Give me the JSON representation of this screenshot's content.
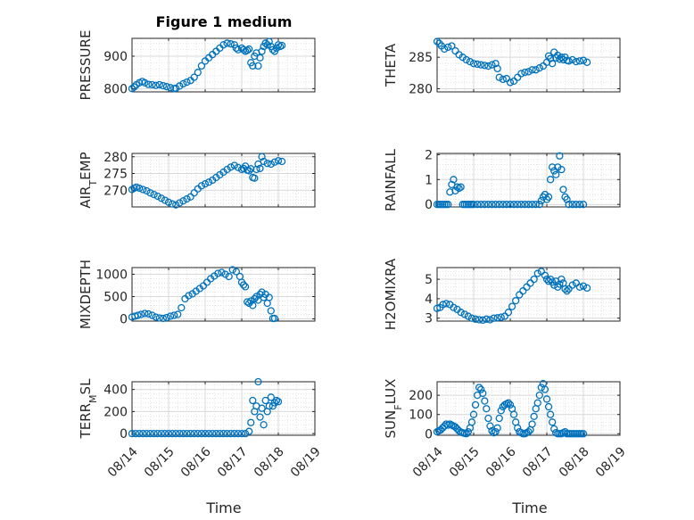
{
  "figure": {
    "title": "Figure 1 medium",
    "xlabel_left": "Time",
    "xlabel_right": "Time"
  },
  "colors": {
    "marker": "#0072BD",
    "axis": "#262626",
    "grid": "#d9d9d9"
  },
  "chart_data": [
    {
      "type": "scatter",
      "id": "pressure",
      "ylabel_main": "PRESSURE",
      "ylabel_sub": "",
      "ylabel_tail": "",
      "ylim": [
        790,
        955
      ],
      "yticks": [
        800,
        900
      ],
      "xlim": [
        "08/14",
        "08/19"
      ],
      "show_xticks": false,
      "grid": true,
      "x_days": [
        0,
        0.06,
        0.12,
        0.2,
        0.28,
        0.35,
        0.45,
        0.55,
        0.65,
        0.75,
        0.85,
        0.95,
        1.05,
        1.15,
        1.2,
        1.3,
        1.4,
        1.5,
        1.6,
        1.7,
        1.8,
        1.9,
        2.0,
        2.1,
        2.2,
        2.3,
        2.4,
        2.5,
        2.6,
        2.7,
        2.8,
        2.85,
        2.9,
        3.0,
        3.05,
        3.1,
        3.15,
        3.2,
        3.25,
        3.3,
        3.35,
        3.4,
        3.45,
        3.5,
        3.55,
        3.6,
        3.65,
        3.7,
        3.75,
        3.8,
        3.85,
        3.9,
        3.95,
        4.0,
        4.05,
        4.1
      ],
      "y": [
        800,
        805,
        812,
        818,
        822,
        818,
        813,
        812,
        810,
        812,
        809,
        806,
        803,
        800,
        801,
        808,
        815,
        820,
        825,
        835,
        850,
        870,
        885,
        895,
        905,
        915,
        925,
        935,
        940,
        938,
        935,
        925,
        920,
        925,
        920,
        915,
        918,
        922,
        880,
        870,
        900,
        910,
        870,
        895,
        915,
        930,
        940,
        935,
        945,
        930,
        920,
        915,
        925,
        935,
        930,
        933
      ],
      "x_labels": [
        "08/14",
        "08/15",
        "08/16",
        "08/17",
        "08/18",
        "08/19"
      ]
    },
    {
      "type": "scatter",
      "id": "theta",
      "ylabel_main": "THETA",
      "ylabel_sub": "",
      "ylabel_tail": "",
      "ylim": [
        279.5,
        288
      ],
      "yticks": [
        280,
        285
      ],
      "xlim": [
        "08/14",
        "08/19"
      ],
      "show_xticks": false,
      "grid": true,
      "x_days": [
        0,
        0.06,
        0.12,
        0.2,
        0.3,
        0.4,
        0.5,
        0.6,
        0.7,
        0.8,
        0.9,
        1.0,
        1.1,
        1.2,
        1.3,
        1.4,
        1.5,
        1.6,
        1.65,
        1.7,
        1.8,
        1.9,
        2.0,
        2.1,
        2.2,
        2.3,
        2.4,
        2.5,
        2.6,
        2.7,
        2.8,
        2.9,
        3.0,
        3.05,
        3.1,
        3.15,
        3.2,
        3.25,
        3.3,
        3.35,
        3.4,
        3.45,
        3.5,
        3.55,
        3.6,
        3.7,
        3.8,
        3.9,
        4.0,
        4.1
      ],
      "y": [
        287.5,
        287.2,
        286.8,
        286.3,
        286.6,
        286.8,
        286.0,
        285.4,
        285.0,
        284.6,
        284.3,
        284.0,
        283.9,
        283.8,
        283.7,
        283.6,
        283.8,
        284.0,
        283.2,
        281.8,
        281.5,
        281.6,
        281.0,
        281.2,
        281.8,
        282.4,
        282.6,
        282.7,
        283.0,
        283.0,
        283.3,
        283.6,
        284.2,
        285.2,
        284.8,
        284.0,
        285.8,
        284.9,
        285.3,
        284.7,
        285.0,
        284.6,
        285.0,
        284.5,
        284.4,
        284.6,
        284.3,
        284.4,
        284.5,
        284.2
      ],
      "x_labels": [
        "08/14",
        "08/15",
        "08/16",
        "08/17",
        "08/18",
        "08/19"
      ]
    },
    {
      "type": "scatter",
      "id": "airtemp",
      "ylabel_main": "AIR",
      "ylabel_sub": "T",
      "ylabel_tail": "EMP",
      "ylim": [
        265,
        281
      ],
      "yticks": [
        270,
        275,
        280
      ],
      "xlim": [
        "08/14",
        "08/19"
      ],
      "show_xticks": false,
      "grid": true,
      "x_days": [
        0,
        0.06,
        0.12,
        0.2,
        0.3,
        0.4,
        0.5,
        0.6,
        0.7,
        0.8,
        0.9,
        1.0,
        1.1,
        1.2,
        1.3,
        1.4,
        1.5,
        1.6,
        1.7,
        1.8,
        1.9,
        2.0,
        2.1,
        2.2,
        2.3,
        2.4,
        2.5,
        2.6,
        2.7,
        2.8,
        2.9,
        3.0,
        3.05,
        3.1,
        3.15,
        3.2,
        3.25,
        3.3,
        3.35,
        3.4,
        3.45,
        3.5,
        3.55,
        3.6,
        3.7,
        3.8,
        3.9,
        4.0,
        4.1
      ],
      "y": [
        270.2,
        270.6,
        270.9,
        270.6,
        270.2,
        269.8,
        269.2,
        268.7,
        268.2,
        267.6,
        267.0,
        266.4,
        265.9,
        265.6,
        266.2,
        266.8,
        267.4,
        268.0,
        269.2,
        270.4,
        271.3,
        271.9,
        272.4,
        273.0,
        273.8,
        274.6,
        275.4,
        276.2,
        276.9,
        277.4,
        276.8,
        276.2,
        276.5,
        277.2,
        276.0,
        275.8,
        276.4,
        273.8,
        273.6,
        276.2,
        277.8,
        276.5,
        280.0,
        278.6,
        278.0,
        277.8,
        278.4,
        278.8,
        278.6
      ],
      "x_labels": [
        "08/14",
        "08/15",
        "08/16",
        "08/17",
        "08/18",
        "08/19"
      ]
    },
    {
      "type": "scatter",
      "id": "rainfall",
      "ylabel_main": "RAINFALL",
      "ylabel_sub": "",
      "ylabel_tail": "",
      "ylim": [
        -0.1,
        2.05
      ],
      "yticks": [
        0,
        1,
        2
      ],
      "xlim": [
        "08/14",
        "08/19"
      ],
      "show_xticks": false,
      "grid": true,
      "x_days": [
        0,
        0.05,
        0.1,
        0.15,
        0.2,
        0.25,
        0.3,
        0.35,
        0.4,
        0.45,
        0.5,
        0.55,
        0.6,
        0.65,
        0.7,
        0.75,
        0.8,
        0.85,
        0.9,
        0.95,
        1.0,
        1.1,
        1.2,
        1.3,
        1.4,
        1.5,
        1.6,
        1.7,
        1.8,
        1.9,
        2.0,
        2.1,
        2.2,
        2.3,
        2.4,
        2.5,
        2.6,
        2.7,
        2.8,
        2.85,
        2.9,
        2.95,
        3.0,
        3.05,
        3.1,
        3.15,
        3.2,
        3.25,
        3.3,
        3.35,
        3.4,
        3.45,
        3.5,
        3.55,
        3.6,
        3.7,
        3.8,
        3.9,
        4.0
      ],
      "y": [
        0,
        0,
        0,
        0,
        0,
        0,
        0,
        0.5,
        0.8,
        1.0,
        0.55,
        0.7,
        0.65,
        0.7,
        0,
        0,
        0,
        0,
        0,
        0,
        0,
        0,
        0,
        0,
        0,
        0,
        0,
        0,
        0,
        0,
        0,
        0,
        0,
        0,
        0,
        0,
        0,
        0,
        0,
        0.15,
        0.3,
        0.4,
        0.2,
        0.3,
        1.0,
        1.5,
        1.35,
        1.2,
        1.5,
        1.95,
        1.4,
        0.6,
        0.3,
        0.2,
        0,
        0,
        0,
        0,
        0
      ],
      "x_labels": [
        "08/14",
        "08/15",
        "08/16",
        "08/17",
        "08/18",
        "08/19"
      ]
    },
    {
      "type": "scatter",
      "id": "mixdepth",
      "ylabel_main": "MIXDEPTH",
      "ylabel_sub": "",
      "ylabel_tail": "",
      "ylim": [
        -50,
        1150
      ],
      "yticks": [
        0,
        500,
        1000
      ],
      "xlim": [
        "08/14",
        "08/19"
      ],
      "show_xticks": false,
      "grid": true,
      "x_days": [
        0,
        0.08,
        0.16,
        0.25,
        0.35,
        0.45,
        0.55,
        0.65,
        0.75,
        0.85,
        0.95,
        1.05,
        1.15,
        1.25,
        1.35,
        1.45,
        1.55,
        1.65,
        1.75,
        1.85,
        1.95,
        2.05,
        2.15,
        2.25,
        2.35,
        2.45,
        2.55,
        2.65,
        2.75,
        2.85,
        2.95,
        3.0,
        3.05,
        3.1,
        3.15,
        3.2,
        3.25,
        3.3,
        3.35,
        3.4,
        3.45,
        3.5,
        3.55,
        3.6,
        3.65,
        3.7,
        3.75,
        3.8,
        3.85,
        3.9
      ],
      "y": [
        40,
        60,
        80,
        100,
        120,
        110,
        80,
        40,
        20,
        10,
        30,
        60,
        80,
        100,
        250,
        450,
        520,
        560,
        620,
        680,
        740,
        820,
        900,
        960,
        1020,
        1040,
        1000,
        950,
        1100,
        1060,
        950,
        820,
        760,
        720,
        380,
        350,
        400,
        300,
        450,
        500,
        420,
        550,
        600,
        480,
        550,
        350,
        480,
        180,
        10,
        10
      ],
      "x_labels": [
        "08/14",
        "08/15",
        "08/16",
        "08/17",
        "08/18",
        "08/19"
      ]
    },
    {
      "type": "scatter",
      "id": "h2omixra",
      "ylabel_main": "H2OMIXRA",
      "ylabel_sub": "",
      "ylabel_tail": "",
      "ylim": [
        2.85,
        5.6
      ],
      "yticks": [
        3,
        4,
        5
      ],
      "xlim": [
        "08/14",
        "08/19"
      ],
      "show_xticks": false,
      "grid": true,
      "x_days": [
        0,
        0.08,
        0.16,
        0.25,
        0.35,
        0.45,
        0.55,
        0.65,
        0.75,
        0.85,
        0.95,
        1.05,
        1.15,
        1.25,
        1.35,
        1.45,
        1.55,
        1.65,
        1.75,
        1.85,
        1.95,
        2.05,
        2.15,
        2.25,
        2.35,
        2.45,
        2.55,
        2.65,
        2.75,
        2.85,
        2.95,
        3.0,
        3.05,
        3.1,
        3.15,
        3.2,
        3.25,
        3.3,
        3.35,
        3.4,
        3.45,
        3.5,
        3.55,
        3.6,
        3.7,
        3.8,
        3.9,
        4.0,
        4.1
      ],
      "y": [
        3.5,
        3.55,
        3.7,
        3.75,
        3.7,
        3.55,
        3.45,
        3.3,
        3.2,
        3.1,
        3.0,
        2.95,
        2.92,
        2.9,
        2.95,
        2.92,
        3.0,
        3.02,
        3.05,
        3.1,
        3.3,
        3.6,
        3.9,
        4.2,
        4.4,
        4.6,
        4.8,
        5.0,
        5.3,
        5.4,
        5.2,
        5.0,
        4.9,
        5.0,
        4.85,
        4.7,
        4.9,
        4.6,
        4.75,
        5.0,
        4.8,
        4.5,
        4.4,
        4.5,
        4.7,
        4.8,
        4.6,
        4.65,
        4.55
      ],
      "x_labels": [
        "08/14",
        "08/15",
        "08/16",
        "08/17",
        "08/18",
        "08/19"
      ]
    },
    {
      "type": "scatter",
      "id": "terrmsl",
      "ylabel_main": "TERR",
      "ylabel_sub": "M",
      "ylabel_tail": "SL",
      "ylim": [
        -15,
        470
      ],
      "yticks": [
        0,
        200,
        400
      ],
      "xlim": [
        "08/14",
        "08/19"
      ],
      "show_xticks": true,
      "grid": true,
      "x_days": [
        0,
        0.1,
        0.2,
        0.3,
        0.4,
        0.5,
        0.6,
        0.7,
        0.8,
        0.9,
        1.0,
        1.1,
        1.2,
        1.3,
        1.4,
        1.5,
        1.6,
        1.7,
        1.8,
        1.9,
        2.0,
        2.1,
        2.2,
        2.3,
        2.4,
        2.5,
        2.6,
        2.7,
        2.8,
        2.9,
        3.0,
        3.1,
        3.2,
        3.25,
        3.3,
        3.35,
        3.4,
        3.45,
        3.5,
        3.55,
        3.6,
        3.65,
        3.7,
        3.75,
        3.8,
        3.85,
        3.9,
        3.95,
        4.0
      ],
      "y": [
        0,
        0,
        0,
        0,
        0,
        0,
        0,
        0,
        0,
        0,
        0,
        0,
        0,
        0,
        0,
        0,
        0,
        0,
        0,
        0,
        0,
        0,
        0,
        0,
        0,
        0,
        0,
        0,
        0,
        0,
        0,
        0,
        20,
        100,
        300,
        200,
        250,
        470,
        150,
        230,
        80,
        300,
        200,
        250,
        330,
        250,
        280,
        300,
        290
      ],
      "x_labels": [
        "08/14",
        "08/15",
        "08/16",
        "08/17",
        "08/18",
        "08/19"
      ]
    },
    {
      "type": "scatter",
      "id": "sunflux",
      "ylabel_main": "SUN",
      "ylabel_sub": "F",
      "ylabel_tail": "LUX",
      "ylim": [
        -8,
        270
      ],
      "yticks": [
        0,
        100,
        200
      ],
      "xlim": [
        "08/14",
        "08/19"
      ],
      "show_xticks": true,
      "grid": true,
      "x_days": [
        0,
        0.05,
        0.1,
        0.15,
        0.2,
        0.25,
        0.3,
        0.35,
        0.4,
        0.45,
        0.5,
        0.55,
        0.6,
        0.65,
        0.7,
        0.75,
        0.8,
        0.85,
        0.9,
        0.95,
        1.0,
        1.05,
        1.1,
        1.15,
        1.2,
        1.25,
        1.3,
        1.35,
        1.4,
        1.45,
        1.5,
        1.55,
        1.6,
        1.65,
        1.7,
        1.75,
        1.8,
        1.85,
        1.9,
        1.95,
        2.0,
        2.05,
        2.1,
        2.15,
        2.2,
        2.25,
        2.3,
        2.35,
        2.4,
        2.45,
        2.5,
        2.55,
        2.6,
        2.65,
        2.7,
        2.75,
        2.8,
        2.85,
        2.9,
        2.95,
        3.0,
        3.05,
        3.1,
        3.15,
        3.2,
        3.25,
        3.3,
        3.35,
        3.4,
        3.45,
        3.5,
        3.55,
        3.6,
        3.65,
        3.7,
        3.75,
        3.8,
        3.85,
        3.9,
        3.95,
        4.0
      ],
      "y": [
        10,
        15,
        20,
        30,
        40,
        50,
        45,
        50,
        45,
        40,
        35,
        25,
        15,
        8,
        5,
        2,
        0,
        10,
        30,
        60,
        100,
        150,
        200,
        240,
        230,
        210,
        170,
        130,
        80,
        40,
        15,
        5,
        10,
        30,
        80,
        120,
        140,
        150,
        155,
        160,
        150,
        130,
        100,
        60,
        30,
        10,
        5,
        0,
        0,
        5,
        10,
        20,
        50,
        90,
        130,
        160,
        200,
        240,
        260,
        230,
        180,
        140,
        100,
        60,
        25,
        5,
        0,
        0,
        0,
        5,
        10,
        0,
        0,
        0,
        0,
        0,
        0,
        0,
        0,
        0,
        0
      ],
      "x_labels": [
        "08/14",
        "08/15",
        "08/16",
        "08/17",
        "08/18",
        "08/19"
      ]
    }
  ]
}
